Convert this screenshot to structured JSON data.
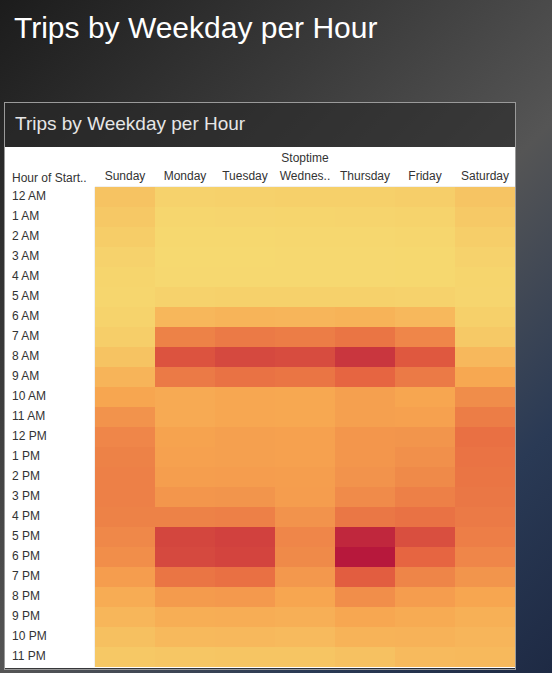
{
  "page_title": "Trips by Weekday per Hour",
  "chart_data": {
    "type": "heatmap",
    "title": "Trips by Weekday per Hour",
    "x_label": "Stoptime",
    "y_label": "Hour of Start..",
    "x_categories": [
      "Sunday",
      "Monday",
      "Tuesday",
      "Wednes..",
      "Thursday",
      "Friday",
      "Saturday"
    ],
    "y_categories": [
      "12 AM",
      "1 AM",
      "2 AM",
      "3 AM",
      "4 AM",
      "5 AM",
      "6 AM",
      "7 AM",
      "8 AM",
      "9 AM",
      "10 AM",
      "11 AM",
      "12 PM",
      "1 PM",
      "2 PM",
      "3 PM",
      "4 PM",
      "5 PM",
      "6 PM",
      "7 PM",
      "8 PM",
      "9 PM",
      "10 PM",
      "11 PM"
    ],
    "values": [
      [
        2400,
        900,
        1000,
        1100,
        1100,
        1300,
        2300
      ],
      [
        1900,
        500,
        550,
        600,
        650,
        800,
        1800
      ],
      [
        1400,
        300,
        300,
        350,
        400,
        500,
        1300
      ],
      [
        900,
        200,
        200,
        250,
        250,
        300,
        900
      ],
      [
        600,
        250,
        250,
        250,
        250,
        300,
        600
      ],
      [
        500,
        900,
        1000,
        1000,
        1000,
        900,
        550
      ],
      [
        800,
        3500,
        3800,
        3700,
        3900,
        3400,
        1100
      ],
      [
        1300,
        7500,
        8000,
        7800,
        8300,
        7200,
        1800
      ],
      [
        2400,
        10500,
        11200,
        11000,
        12500,
        10200,
        3400
      ],
      [
        3800,
        8000,
        8500,
        8300,
        9300,
        8000,
        5000
      ],
      [
        5200,
        4800,
        5100,
        5000,
        5600,
        5200,
        6800
      ],
      [
        6400,
        4800,
        5100,
        5000,
        5600,
        5500,
        7800
      ],
      [
        7200,
        5400,
        5600,
        5500,
        6200,
        6300,
        8600
      ],
      [
        7500,
        5500,
        5600,
        5500,
        6200,
        6600,
        8400
      ],
      [
        7600,
        5700,
        5800,
        5700,
        6400,
        7000,
        8300
      ],
      [
        7600,
        6200,
        6300,
        5800,
        6900,
        7600,
        8200
      ],
      [
        7500,
        7500,
        7600,
        6400,
        8200,
        8500,
        8000
      ],
      [
        7100,
        11400,
        11700,
        7200,
        13500,
        10800,
        7700
      ],
      [
        6700,
        11200,
        11500,
        7000,
        14500,
        9300,
        7200
      ],
      [
        5800,
        8300,
        8600,
        6100,
        9800,
        7300,
        6300
      ],
      [
        4600,
        5900,
        6000,
        5200,
        6700,
        5800,
        5200
      ],
      [
        3600,
        4400,
        4500,
        4300,
        5100,
        4700,
        4200
      ],
      [
        2700,
        3300,
        3400,
        3200,
        3900,
        4000,
        3700
      ],
      [
        1900,
        2100,
        2200,
        2200,
        2600,
        3200,
        3300
      ]
    ]
  }
}
